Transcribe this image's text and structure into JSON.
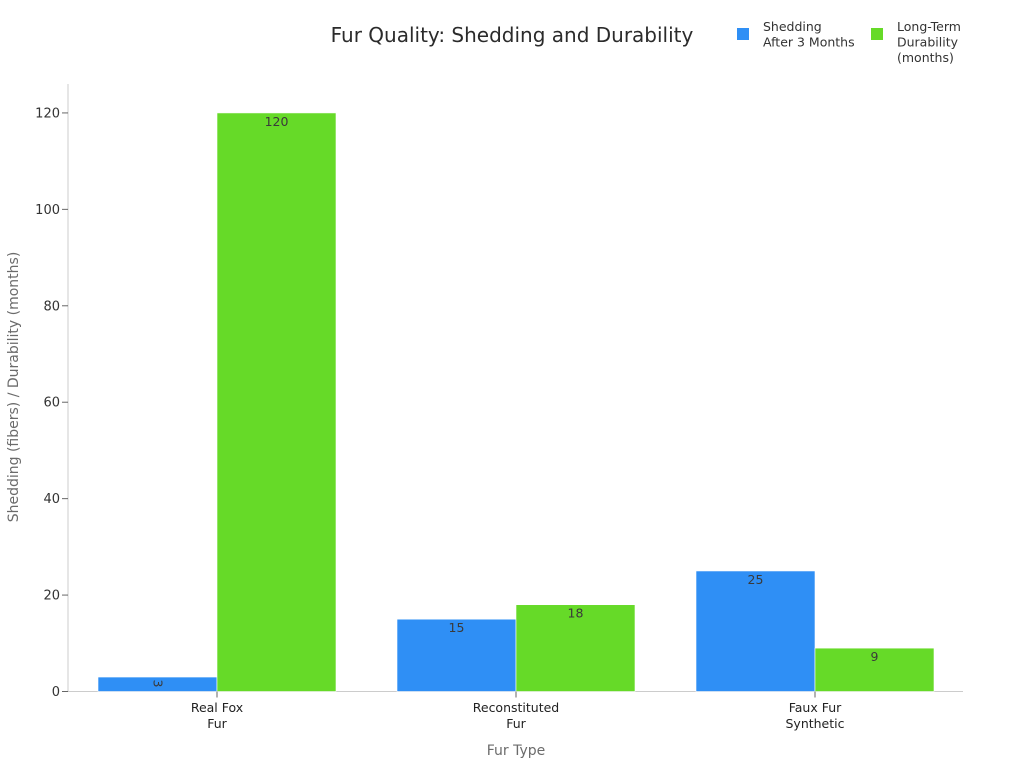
{
  "chart_data": {
    "type": "bar",
    "title": "Fur Quality: Shedding and Durability",
    "xlabel": "Fur Type",
    "ylabel": "Shedding (fibers) / Durability (months)",
    "categories": [
      [
        "Real Fox",
        "Fur"
      ],
      [
        "Reconstituted",
        "Fur"
      ],
      [
        "Faux Fur",
        "Synthetic"
      ]
    ],
    "series": [
      {
        "name": [
          "Shedding",
          "After 3 Months"
        ],
        "color": "#2f8ff5",
        "values": [
          3,
          15,
          25
        ],
        "labels": [
          "3",
          "15",
          "25"
        ]
      },
      {
        "name": [
          "Long-Term",
          "Durability",
          "(months)"
        ],
        "color": "#66da28",
        "values": [
          120,
          18,
          9
        ],
        "labels": [
          "120",
          "18",
          "9"
        ]
      }
    ],
    "ylim": [
      0,
      126
    ],
    "yticks": [
      0,
      20,
      40,
      60,
      80,
      100,
      120
    ],
    "ytick_labels": [
      "0",
      "20",
      "40",
      "60",
      "80",
      "100",
      "120"
    ],
    "grid": false,
    "legend_position": "top-right"
  }
}
